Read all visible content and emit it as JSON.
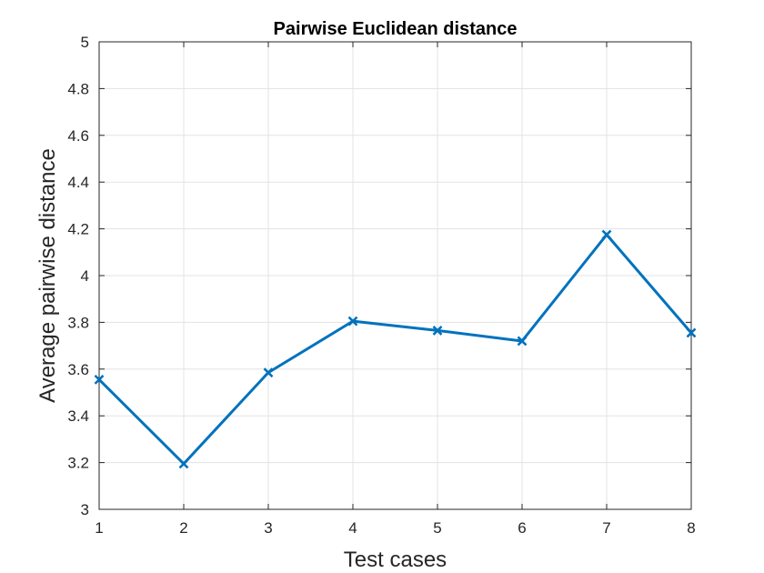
{
  "chart_data": {
    "type": "line",
    "title": "Pairwise Euclidean distance",
    "xlabel": "Test cases",
    "ylabel": "Average pairwise distance",
    "x": [
      1,
      2,
      3,
      4,
      5,
      6,
      7,
      8
    ],
    "series": [
      {
        "values": [
          3.555,
          3.195,
          3.585,
          3.805,
          3.765,
          3.72,
          4.175,
          3.755
        ],
        "color": "#0072BD",
        "marker": "x"
      }
    ],
    "xlim": [
      1,
      8
    ],
    "ylim": [
      3,
      5
    ],
    "xticks": [
      "1",
      "2",
      "3",
      "4",
      "5",
      "6",
      "7",
      "8"
    ],
    "yticks": [
      "3",
      "3.2",
      "3.4",
      "3.6",
      "3.8",
      "4",
      "4.2",
      "4.4",
      "4.6",
      "4.8",
      "5"
    ],
    "grid": true,
    "legend": "none"
  }
}
